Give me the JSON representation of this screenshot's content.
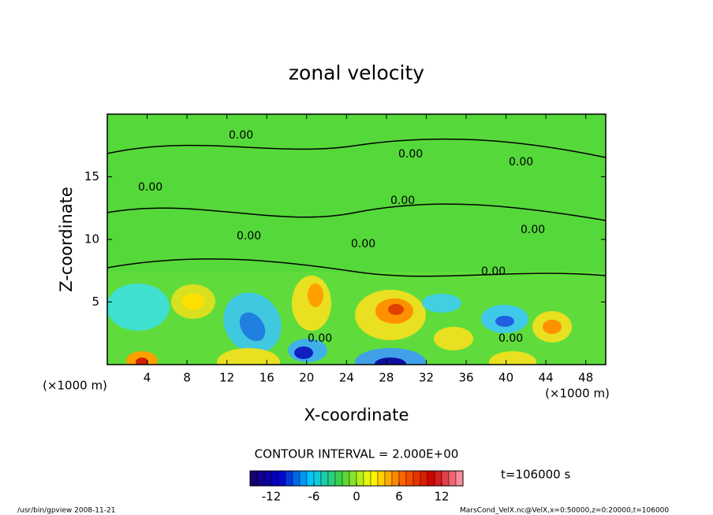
{
  "chart_data": {
    "type": "contour",
    "title": "zonal velocity",
    "xlabel": "X-coordinate",
    "ylabel": "Z-coordinate",
    "x_unit": "(×1000 m)",
    "y_unit": "(×1000 m)",
    "xlim": [
      0,
      50
    ],
    "xticks": [
      4,
      8,
      12,
      16,
      20,
      24,
      28,
      32,
      36,
      40,
      44,
      48
    ],
    "ylim": [
      0,
      20
    ],
    "yticks": [
      5,
      10,
      15
    ],
    "contour_label": "0.00",
    "contour_interval_text": "CONTOUR INTERVAL = 2.000E+00",
    "time_text": "t=106000 s",
    "colorbar": {
      "lim": [
        -15,
        15
      ],
      "ticks": [
        -12,
        -6,
        0,
        6,
        12
      ],
      "colormap": [
        "#1a0066",
        "#0000cc",
        "#00c8ff",
        "#40d040",
        "#ffff00",
        "#ff6600",
        "#cc0000",
        "#ff9fb0"
      ]
    },
    "footer_left": "/usr/bin/gpview  2008-11-21",
    "footer_right": "MarsCond_VelX.nc@VelX,x=0:50000,z=0:20000,t=106000"
  }
}
